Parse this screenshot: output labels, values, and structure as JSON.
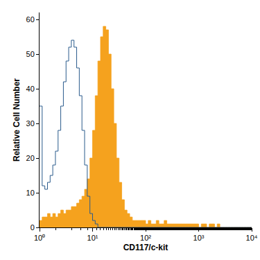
{
  "chart_data": {
    "type": "histogram",
    "xlabel": "CD117/c-kit",
    "ylabel": "Relative Cell Number",
    "log": "x",
    "grid": false,
    "xlim": [
      1,
      10000
    ],
    "ylim": [
      0,
      62
    ],
    "xticks": [
      {
        "value": 1,
        "label": "10⁰"
      },
      {
        "value": 10,
        "label": "10¹"
      },
      {
        "value": 100,
        "label": "10²"
      },
      {
        "value": 1000,
        "label": "10³"
      },
      {
        "value": 10000,
        "label": "10⁴"
      }
    ],
    "yticks": [
      0,
      10,
      20,
      30,
      40,
      50,
      60
    ],
    "bins": [
      1,
      1.122,
      1.259,
      1.413,
      1.585,
      1.778,
      1.995,
      2.239,
      2.512,
      2.818,
      3.162,
      3.548,
      3.981,
      4.467,
      5.012,
      5.623,
      6.31,
      7.079,
      7.943,
      8.913,
      10,
      11.22,
      12.59,
      14.13,
      15.85,
      17.78,
      19.95,
      22.39,
      25.12,
      28.18,
      31.62,
      35.48,
      39.81,
      44.67,
      50.12,
      56.23,
      63.1,
      70.79,
      79.43,
      89.13,
      100,
      112.2,
      125.9,
      141.3,
      158.5,
      177.8,
      199.5,
      223.9,
      251.2,
      281.8,
      316.2,
      354.8,
      398.1,
      446.7,
      501.2,
      562.3,
      631,
      707.9,
      794.3,
      891.3,
      1000,
      1122,
      1259,
      1413,
      1585,
      1778,
      1995,
      2239,
      2512,
      2818,
      3162,
      3548,
      3981,
      4467,
      5012,
      5623,
      6310,
      7079,
      7943,
      8913,
      10000
    ],
    "series": [
      {
        "type": "area",
        "color": "#f5a21e",
        "values": [
          2,
          3,
          3,
          4,
          3,
          4,
          3,
          4,
          5,
          4,
          5,
          5,
          6,
          6,
          7,
          8,
          9,
          11,
          14,
          20,
          28,
          38,
          48,
          55,
          58,
          57,
          50,
          40,
          30,
          20,
          13,
          8,
          5,
          4,
          3,
          2,
          2,
          2,
          2,
          2,
          1,
          2,
          1,
          1,
          2,
          1,
          1,
          2,
          1,
          1,
          1,
          1,
          1,
          1,
          1,
          1,
          1,
          1,
          1,
          1,
          0,
          1,
          1,
          0,
          1,
          1,
          0,
          1,
          0,
          0,
          0,
          0,
          0,
          0,
          0,
          0,
          0,
          0,
          0,
          0
        ]
      },
      {
        "type": "line",
        "color": "#2a5b8c",
        "values": [
          35,
          12,
          11,
          13,
          15,
          18,
          22,
          28,
          35,
          42,
          48,
          52,
          54,
          52,
          46,
          38,
          28,
          18,
          9,
          4,
          2,
          1,
          0,
          0,
          0,
          0,
          0,
          0,
          0,
          0,
          0,
          0,
          0,
          0,
          0,
          0,
          0,
          0,
          0,
          0,
          0,
          0,
          0,
          0,
          0,
          0,
          0,
          0,
          0,
          0,
          0,
          0,
          0,
          0,
          0,
          0,
          0,
          0,
          0,
          0,
          0,
          0,
          0,
          0,
          0,
          0,
          0,
          0,
          0,
          0,
          0,
          0,
          0,
          0,
          0,
          0,
          0,
          0,
          0,
          0
        ]
      }
    ]
  }
}
